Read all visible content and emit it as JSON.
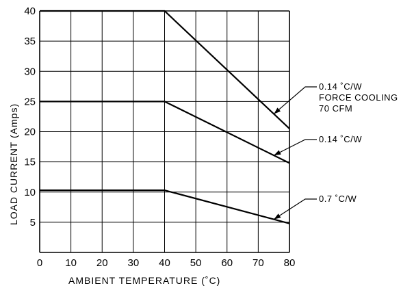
{
  "chart_data": {
    "type": "line",
    "xlabel": "AMBIENT TEMPERATURE (˚C)",
    "ylabel": "LOAD CURRENT (Amps)",
    "xlim": [
      0,
      80
    ],
    "ylim": [
      0,
      40
    ],
    "grid": true,
    "x_ticks": [
      "0",
      "10",
      "20",
      "30",
      "40",
      "50",
      "60",
      "70",
      "80"
    ],
    "y_ticks": [
      "5",
      "10",
      "15",
      "20",
      "25",
      "30",
      "35",
      "40"
    ],
    "series": [
      {
        "name": "0.14 ˚C/W FORCE COOLING 70 CFM",
        "x": [
          0,
          40,
          80
        ],
        "y": [
          40,
          40,
          20.5
        ]
      },
      {
        "name": "0.14 ˚C/W",
        "x": [
          0,
          40,
          80
        ],
        "y": [
          25,
          25,
          14.8
        ]
      },
      {
        "name": "0.7 ˚C/W",
        "x": [
          0,
          40,
          80
        ],
        "y": [
          10.3,
          10.3,
          4.8
        ]
      }
    ],
    "annotations": [
      {
        "lines": [
          "0.14 ˚C/W",
          "FORCE COOLING",
          "70 CFM"
        ],
        "points_to_series": 0,
        "at_x": 75
      },
      {
        "lines": [
          "0.14 ˚C/W"
        ],
        "points_to_series": 1,
        "at_x": 75
      },
      {
        "lines": [
          "0.7 ˚C/W"
        ],
        "points_to_series": 2,
        "at_x": 75
      }
    ],
    "colors": {
      "line": "#000000",
      "grid": "#000000",
      "background": "#ffffff"
    }
  }
}
